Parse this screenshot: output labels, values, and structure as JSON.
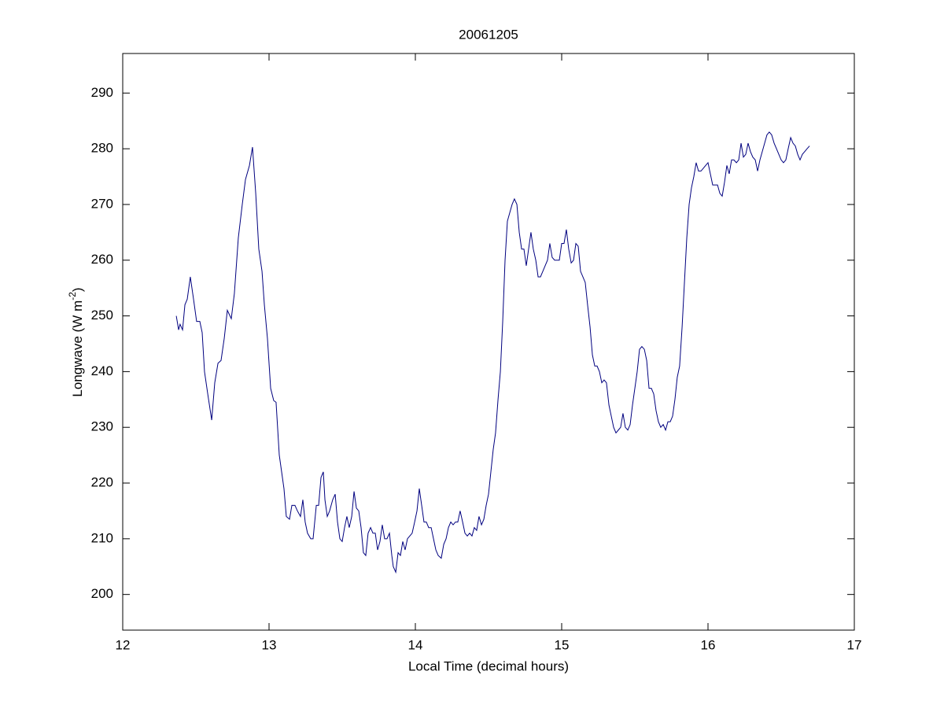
{
  "chart_data": {
    "type": "line",
    "title": "20061205",
    "xlabel": "Local Time (decimal hours)",
    "ylabel": {
      "text": "Longwave (W m",
      "superscript": "-2",
      "suffix": ")"
    },
    "xlim": [
      12,
      17
    ],
    "ylim": [
      193.6,
      297.1
    ],
    "xticks": [
      12,
      13,
      14,
      15,
      16,
      17
    ],
    "yticks": [
      200,
      210,
      220,
      230,
      240,
      250,
      260,
      270,
      280,
      290
    ],
    "grid": false,
    "series": [
      {
        "color": "#00007f",
        "x": [
          12.366,
          12.382,
          12.392,
          12.409,
          12.425,
          12.441,
          12.462,
          12.484,
          12.505,
          12.527,
          12.543,
          12.559,
          12.581,
          12.608,
          12.629,
          12.651,
          12.672,
          12.694,
          12.715,
          12.742,
          12.763,
          12.79,
          12.817,
          12.839,
          12.866,
          12.887,
          12.909,
          12.93,
          12.952,
          12.968,
          12.989,
          13.011,
          13.032,
          13.048,
          13.07,
          13.086,
          13.102,
          13.118,
          13.14,
          13.156,
          13.177,
          13.194,
          13.215,
          13.231,
          13.247,
          13.263,
          13.285,
          13.301,
          13.323,
          13.339,
          13.355,
          13.371,
          13.382,
          13.398,
          13.414,
          13.435,
          13.452,
          13.468,
          13.484,
          13.5,
          13.516,
          13.532,
          13.548,
          13.565,
          13.581,
          13.597,
          13.613,
          13.629,
          13.645,
          13.661,
          13.677,
          13.694,
          13.71,
          13.726,
          13.742,
          13.758,
          13.774,
          13.79,
          13.806,
          13.823,
          13.839,
          13.849,
          13.866,
          13.882,
          13.898,
          13.914,
          13.93,
          13.946,
          13.962,
          13.978,
          13.995,
          14.011,
          14.027,
          14.043,
          14.059,
          14.075,
          14.091,
          14.108,
          14.124,
          14.14,
          14.156,
          14.177,
          14.194,
          14.21,
          14.226,
          14.242,
          14.258,
          14.274,
          14.29,
          14.306,
          14.323,
          14.339,
          14.355,
          14.371,
          14.387,
          14.403,
          14.419,
          14.435,
          14.452,
          14.468,
          14.484,
          14.5,
          14.516,
          14.532,
          14.548,
          14.565,
          14.581,
          14.597,
          14.613,
          14.629,
          14.645,
          14.661,
          14.677,
          14.694,
          14.71,
          14.726,
          14.742,
          14.758,
          14.774,
          14.79,
          14.806,
          14.823,
          14.839,
          14.855,
          14.871,
          14.887,
          14.903,
          14.919,
          14.935,
          14.952,
          14.968,
          14.984,
          15.0,
          15.016,
          15.032,
          15.048,
          15.065,
          15.081,
          15.097,
          15.113,
          15.129,
          15.145,
          15.161,
          15.177,
          15.194,
          15.21,
          15.226,
          15.242,
          15.258,
          15.274,
          15.29,
          15.306,
          15.323,
          15.339,
          15.355,
          15.371,
          15.387,
          15.403,
          15.419,
          15.435,
          15.452,
          15.468,
          15.484,
          15.5,
          15.516,
          15.532,
          15.548,
          15.565,
          15.581,
          15.597,
          15.613,
          15.629,
          15.645,
          15.661,
          15.677,
          15.694,
          15.71,
          15.726,
          15.742,
          15.758,
          15.774,
          15.79,
          15.806,
          15.823,
          15.839,
          15.855,
          15.871,
          15.887,
          15.903,
          15.919,
          15.935,
          15.952,
          15.968,
          15.984,
          16.0,
          16.016,
          16.032,
          16.048,
          16.065,
          16.081,
          16.097,
          16.113,
          16.129,
          16.145,
          16.161,
          16.177,
          16.194,
          16.21,
          16.226,
          16.242,
          16.258,
          16.274,
          16.29,
          16.306,
          16.323,
          16.339,
          16.355,
          16.371,
          16.387,
          16.403,
          16.419,
          16.435,
          16.452,
          16.468,
          16.484,
          16.5,
          16.516,
          16.532,
          16.548,
          16.565,
          16.581,
          16.597,
          16.613,
          16.629,
          16.645,
          16.661,
          16.677,
          16.694
        ],
        "values": [
          250,
          247.5,
          248.5,
          247.5,
          252,
          253,
          257,
          253,
          249,
          249,
          247,
          240,
          236,
          231.3,
          238,
          241.5,
          242,
          246,
          251,
          249.5,
          254,
          264,
          270,
          274.5,
          277,
          280.3,
          272,
          262,
          258,
          252,
          246,
          237,
          234.8,
          234.5,
          225,
          222,
          219,
          214,
          213.5,
          216,
          216,
          215,
          214,
          217,
          213,
          211,
          210,
          210,
          216,
          216,
          221,
          222,
          217,
          214,
          215,
          217,
          218,
          213,
          210,
          209.5,
          212,
          214,
          212,
          214,
          218.5,
          215.5,
          215,
          212,
          207.5,
          207,
          211,
          212,
          211,
          211,
          208,
          209.5,
          212.5,
          210,
          210,
          211,
          207,
          205,
          204,
          207.5,
          207,
          209.5,
          208,
          210,
          210.5,
          211,
          213,
          215,
          219,
          216,
          213,
          213,
          212,
          212,
          210,
          208,
          207,
          206.5,
          209,
          210,
          212,
          213,
          212.5,
          213,
          213,
          215,
          213,
          211,
          210.5,
          211,
          210.5,
          212,
          211.5,
          214,
          212.5,
          213.5,
          216,
          218,
          222,
          226,
          229,
          235,
          240,
          249,
          260,
          267,
          268.5,
          270,
          271,
          270,
          265,
          262,
          262,
          259,
          262,
          265,
          262,
          260,
          257,
          257,
          258,
          259,
          260,
          263,
          260.5,
          260,
          260,
          260,
          263,
          263,
          265.5,
          262,
          259.5,
          260,
          263,
          262.5,
          258,
          257,
          256,
          252,
          248,
          243,
          241,
          241,
          240,
          238,
          238.5,
          238,
          234,
          232,
          230,
          229,
          229.5,
          230,
          232.5,
          230,
          229.5,
          230.5,
          234,
          237,
          240,
          244,
          244.5,
          244,
          242,
          237,
          237,
          236,
          233,
          231,
          230,
          230.5,
          229.5,
          231,
          231,
          232,
          235,
          239,
          241,
          248,
          256,
          264,
          270,
          273,
          275,
          277.5,
          276,
          276,
          276.5,
          277,
          277.5,
          275.5,
          273.5,
          273.5,
          273.5,
          272,
          271.5,
          274,
          277,
          275.5,
          278,
          278,
          277.5,
          278,
          281,
          278.5,
          279,
          281,
          279.5,
          278.5,
          278,
          276,
          278,
          279.5,
          281,
          282.5,
          283,
          282.5,
          281,
          280,
          279,
          278,
          277.5,
          278,
          280,
          282,
          281,
          280.5,
          279,
          278,
          279,
          279.5,
          280,
          280.5
        ]
      }
    ]
  }
}
